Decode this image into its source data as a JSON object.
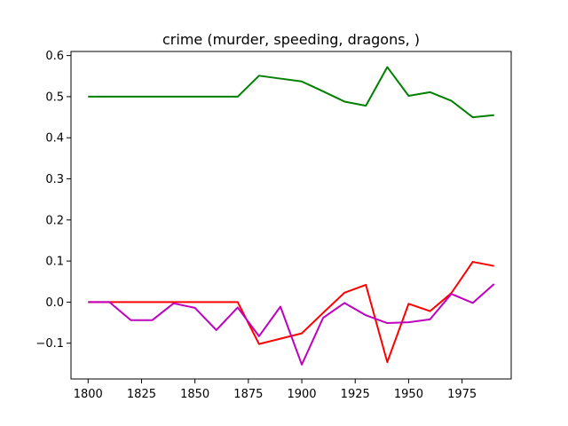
{
  "chart_data": {
    "type": "line",
    "title": "crime (murder, speeding, dragons, )",
    "xlabel": "",
    "ylabel": "",
    "x": [
      1800,
      1810,
      1820,
      1830,
      1840,
      1850,
      1860,
      1870,
      1880,
      1890,
      1900,
      1910,
      1920,
      1930,
      1940,
      1950,
      1960,
      1970,
      1980,
      1990
    ],
    "xlim": [
      1792,
      1998
    ],
    "ylim": [
      -0.187,
      0.61
    ],
    "xticks": [
      1800,
      1825,
      1850,
      1875,
      1900,
      1925,
      1950,
      1975
    ],
    "yticks": [
      -0.1,
      0.0,
      0.1,
      0.2,
      0.3,
      0.4,
      0.5,
      0.6
    ],
    "xtick_labels": [
      "1800",
      "1825",
      "1850",
      "1875",
      "1900",
      "1925",
      "1950",
      "1975"
    ],
    "ytick_labels": [
      "−0.1",
      "0.0",
      "0.1",
      "0.2",
      "0.3",
      "0.4",
      "0.5",
      "0.6"
    ],
    "grid": false,
    "series": [
      {
        "color": "#008000",
        "values": [
          0.5,
          0.5,
          0.5,
          0.5,
          0.5,
          0.5,
          0.5,
          0.5,
          0.551,
          0.544,
          0.537,
          0.513,
          0.488,
          0.478,
          0.572,
          0.502,
          0.511,
          0.49,
          0.45,
          0.455
        ]
      },
      {
        "color": "#ff0000",
        "values": [
          0.0,
          0.0,
          0.0,
          0.0,
          0.0,
          0.0,
          0.0,
          0.0,
          -0.102,
          -0.089,
          -0.076,
          -0.026,
          0.023,
          0.042,
          -0.146,
          -0.004,
          -0.022,
          0.022,
          0.098,
          0.088
        ]
      },
      {
        "color": "#bf00bf",
        "values": [
          0.0,
          0.0,
          -0.044,
          -0.044,
          -0.003,
          -0.014,
          -0.068,
          -0.013,
          -0.083,
          -0.011,
          -0.152,
          -0.038,
          -0.002,
          -0.032,
          -0.051,
          -0.049,
          -0.042,
          0.02,
          -0.002,
          0.044
        ]
      }
    ]
  }
}
